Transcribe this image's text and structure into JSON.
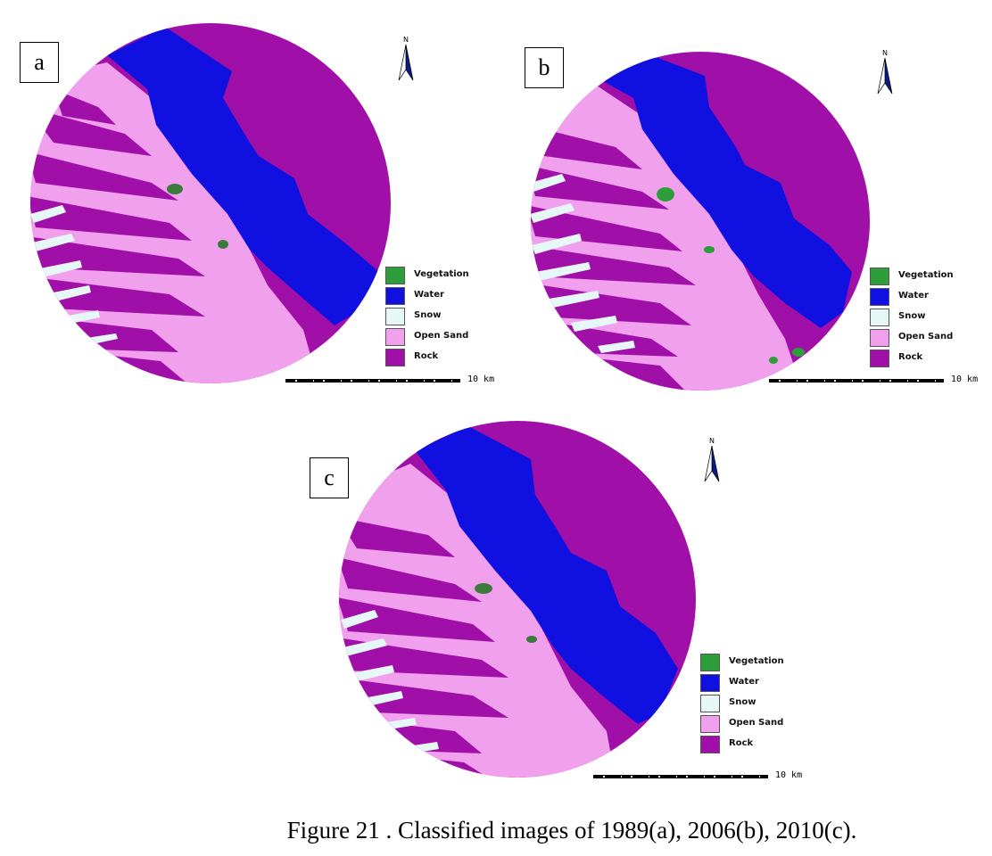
{
  "colors": {
    "vegetation": "#2e9e3a",
    "water": "#1010e0",
    "snow": "#e6f7f7",
    "open_sand": "#f0a0ec",
    "rock": "#a010a8"
  },
  "north_letter": "N",
  "legend": [
    {
      "key": "vegetation",
      "label": "Vegetation"
    },
    {
      "key": "water",
      "label": "Water"
    },
    {
      "key": "snow",
      "label": "Snow"
    },
    {
      "key": "open_sand",
      "label": "Open Sand"
    },
    {
      "key": "rock",
      "label": "Rock"
    }
  ],
  "scale_label": "10  km",
  "panels": [
    {
      "label": "a"
    },
    {
      "label": "b"
    },
    {
      "label": "c"
    }
  ],
  "caption": "Figure 21 . Classified images of 1989(a), 2006(b), 2010(c)."
}
